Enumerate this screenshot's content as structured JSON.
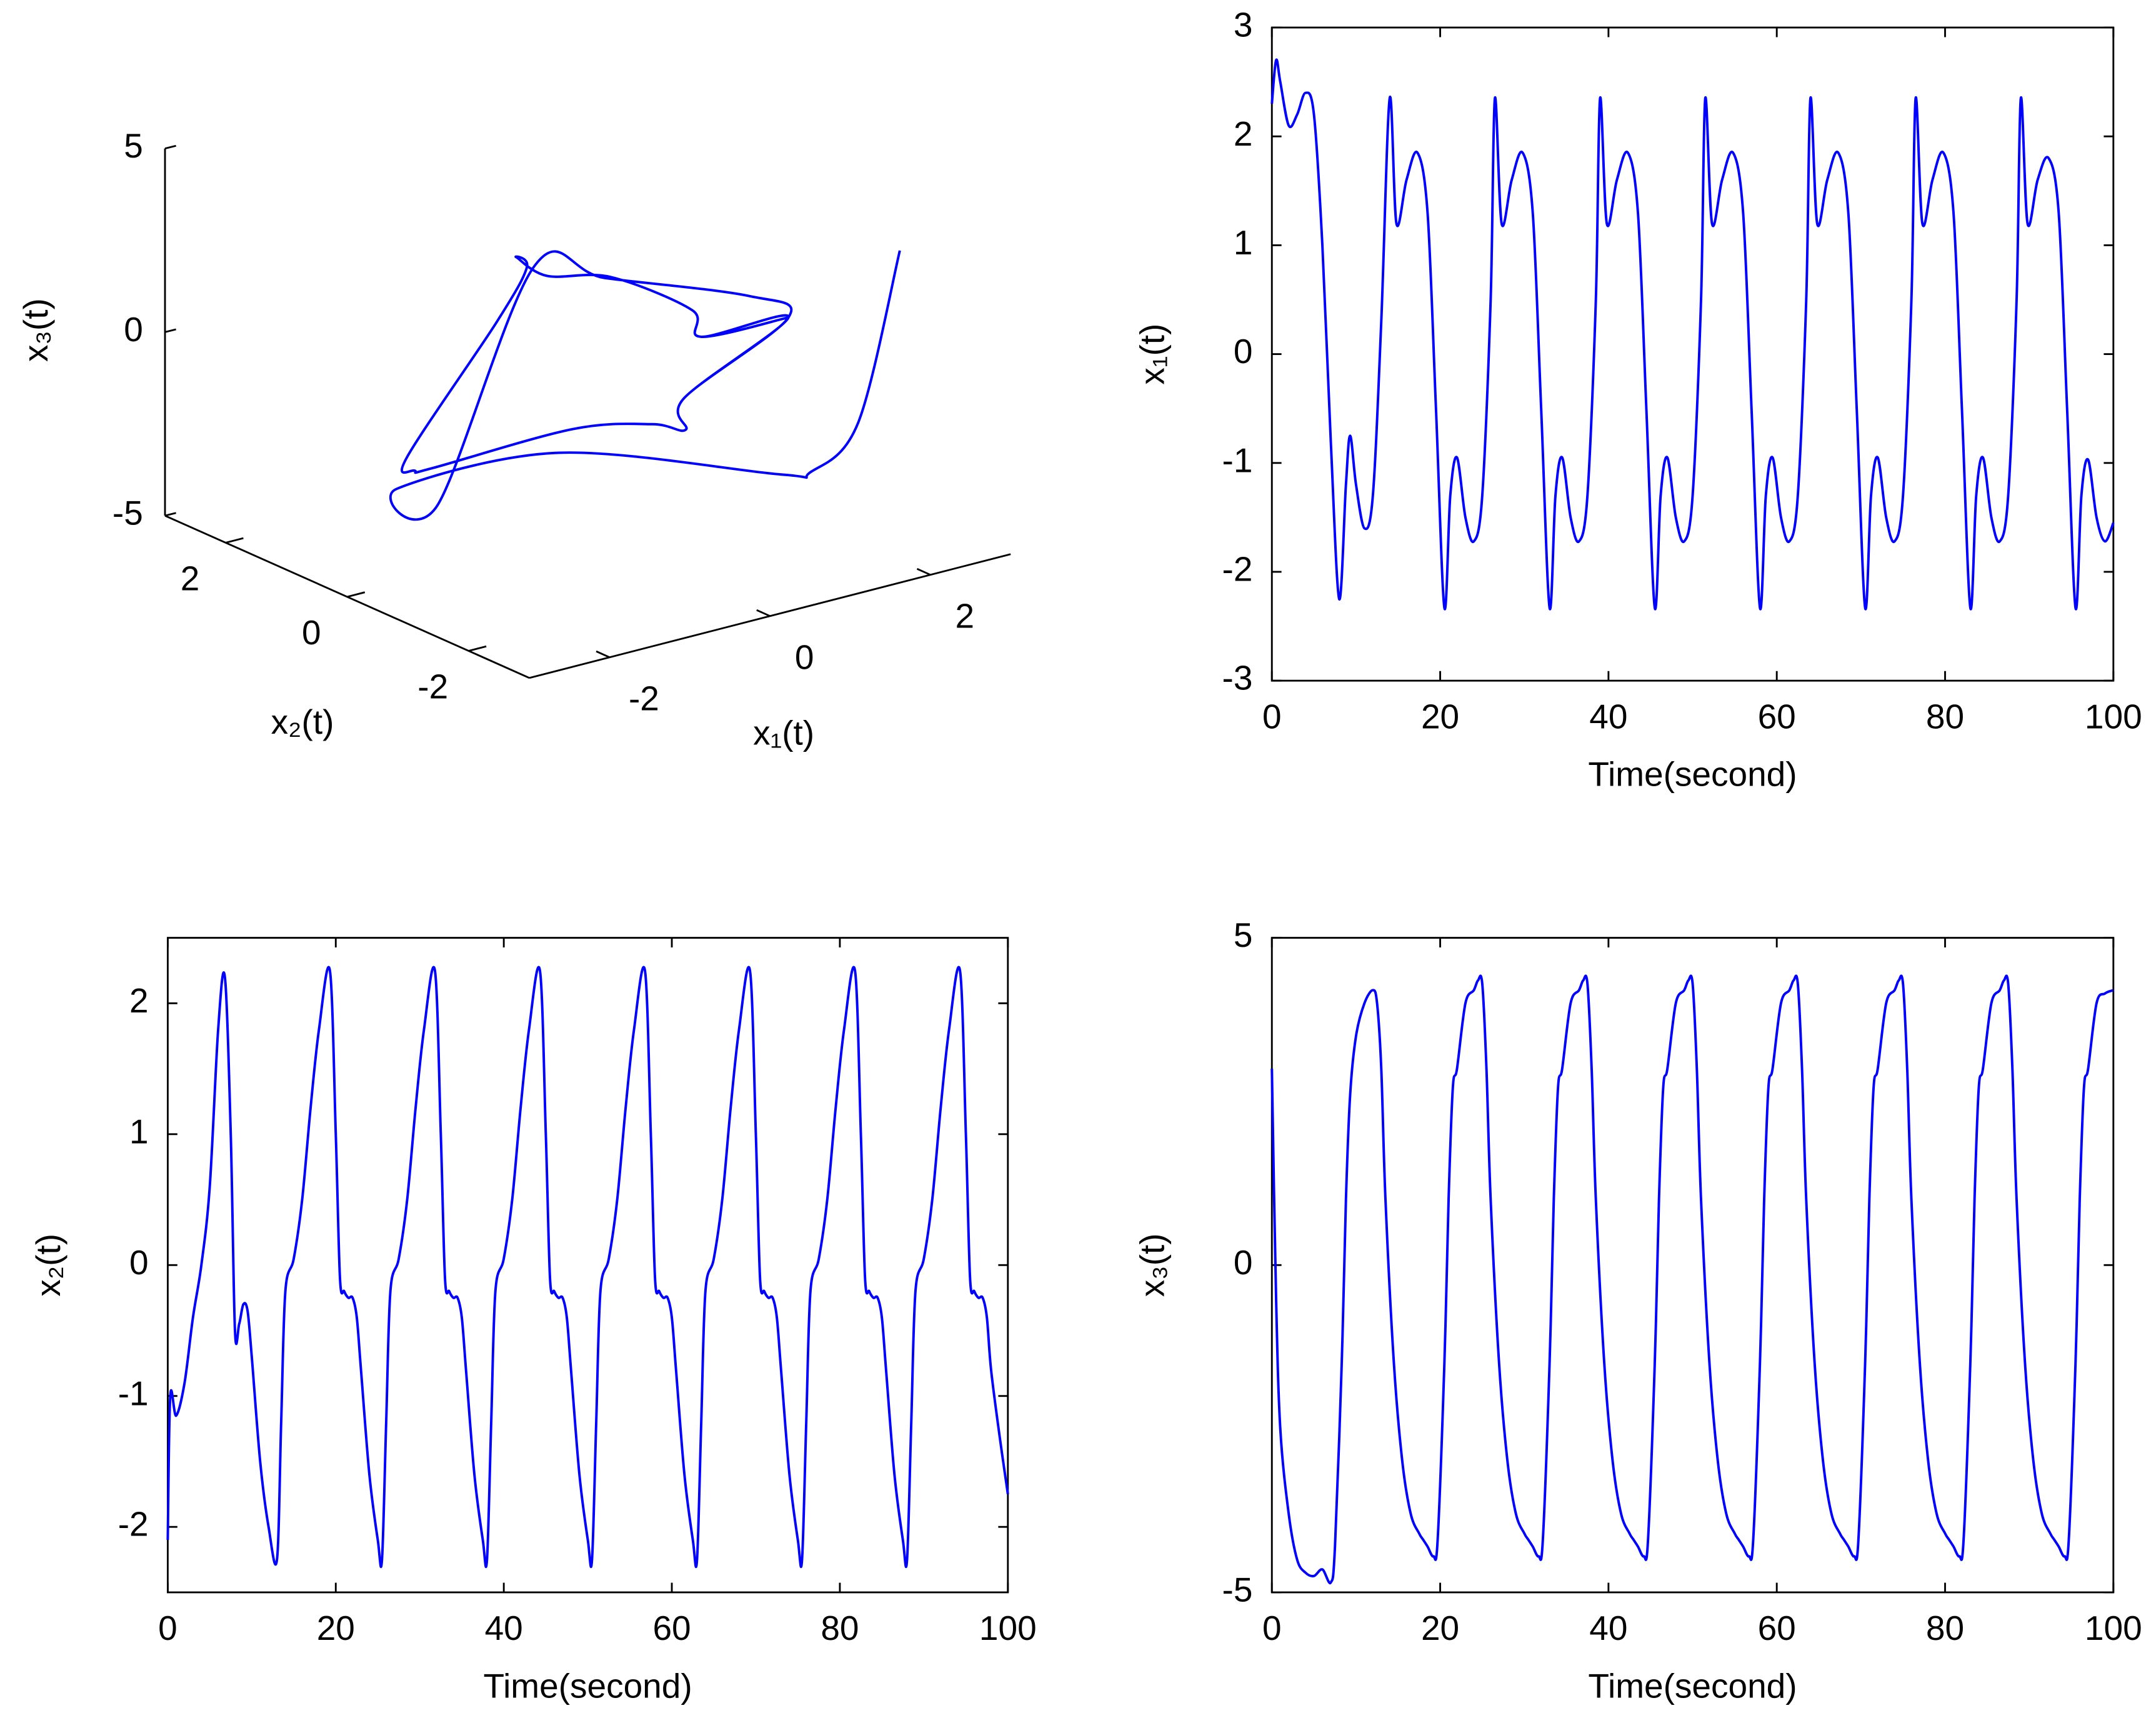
{
  "chart_data": [
    {
      "type": "line3d",
      "xlabel": "x₁(t)",
      "ylabel": "x₂(t)",
      "zlabel": "x₃(t)",
      "color": "#0000ff",
      "xlim": [
        -3,
        3
      ],
      "xticks": [
        -2,
        0,
        2
      ],
      "ylim": [
        -3,
        3
      ],
      "yticks": [
        -2,
        0,
        2
      ],
      "zlim": [
        -5,
        5
      ],
      "zticks": [
        -5,
        0,
        5
      ],
      "x": [
        2.3,
        2.5,
        2.1,
        2.4,
        1.0,
        -0.8,
        -2.25,
        -1.2,
        -1.3,
        0.3,
        2.35,
        1.2,
        1.6,
        1.85,
        1.3,
        -0.5,
        -1.4,
        -2.33,
        -1.3,
        -0.95,
        -1.5,
        -1.72,
        -1.3,
        -0.4,
        0.5,
        2.35,
        1.2,
        1.6,
        1.85,
        1.3,
        -0.5,
        -1.4,
        -2.33,
        -1.3,
        -0.95,
        -1.5,
        -1.72,
        -1.3,
        -0.4,
        0.5,
        2.35
      ],
      "y": [
        -2.1,
        -1.15,
        -0.9,
        0,
        1.8,
        2.1,
        -0.5,
        -0.7,
        -2.0,
        -2.25,
        -0.2,
        0.0,
        0.5,
        1.38,
        1.97,
        1.9,
        1.0,
        -0.1,
        -0.22,
        -0.25,
        -0.8,
        -1.6,
        -2.1,
        -2.25,
        -1.2,
        -0.2,
        0.0,
        0.5,
        1.38,
        1.97,
        1.9,
        1.0,
        -0.1,
        -0.22,
        -0.25,
        -0.8,
        -1.6,
        -2.1,
        -2.25,
        -1.2,
        -0.2
      ],
      "z": [
        3,
        -2.5,
        -3.8,
        -4.7,
        -4.65,
        -4.85,
        -2.55,
        3.5,
        4.2,
        3.0,
        -0.25,
        -1.95,
        -3.4,
        -4.04,
        -4.3,
        -4.3,
        -3.2,
        -1.5,
        1.7,
        3.0,
        4.0,
        4.2,
        4.3,
        3.0,
        1.0,
        -0.25,
        -1.95,
        -3.4,
        -4.04,
        -4.3,
        -4.3,
        -3.2,
        -1.5,
        1.7,
        3.0,
        4.0,
        4.2,
        4.3,
        3.0,
        1.0,
        -0.25
      ]
    },
    {
      "type": "line",
      "xlabel": "Time(second)",
      "ylabel": "x₁(t)",
      "color": "#0000ff",
      "xlim": [
        0,
        100
      ],
      "xticks": [
        0,
        20,
        40,
        60,
        80,
        100
      ],
      "ylim": [
        -3,
        3
      ],
      "yticks": [
        -3,
        -2,
        -1,
        0,
        1,
        2,
        3
      ],
      "x": [
        0,
        0.5,
        1,
        2,
        3,
        4,
        5,
        6,
        7,
        8,
        8.8,
        9.3,
        10,
        11,
        12,
        13,
        14,
        14.8,
        16,
        17.3,
        18.5,
        19.5,
        20.5,
        21.2,
        22,
        23,
        24,
        25,
        26,
        26.5,
        27.3,
        28.5,
        29.8,
        31,
        32,
        33,
        33.7,
        34.5,
        35.5,
        36.5,
        37.5,
        38.5,
        39,
        39.8,
        41,
        42.3,
        43.5,
        44.5,
        45.5,
        46.2,
        47,
        48,
        49,
        50,
        51,
        51.5,
        52.3,
        53.5,
        54.8,
        56,
        57,
        58,
        58.7,
        59.5,
        60.5,
        61.5,
        62.5,
        63.5,
        64,
        64.8,
        66,
        67.3,
        68.5,
        69.5,
        70.5,
        71.2,
        72,
        73,
        74,
        75,
        76,
        76.5,
        77.3,
        78.5,
        79.8,
        81,
        82,
        83,
        83.7,
        84.5,
        85.5,
        86.5,
        87.5,
        88.5,
        89,
        89.8,
        91,
        92.3,
        93.5,
        94.5,
        95.5,
        96.2,
        97,
        98,
        99,
        100
      ],
      "values": [
        2.3,
        2.7,
        2.5,
        2.1,
        2.2,
        2.4,
        2.2,
        1.0,
        -0.8,
        -2.25,
        -1.2,
        -0.75,
        -1.2,
        -1.6,
        -1.3,
        0.3,
        2.35,
        1.2,
        1.6,
        1.85,
        1.3,
        -0.5,
        -2.33,
        -1.3,
        -0.95,
        -1.5,
        -1.72,
        -1.3,
        0.5,
        2.35,
        1.2,
        1.6,
        1.85,
        1.3,
        -0.5,
        -2.33,
        -1.3,
        -0.95,
        -1.5,
        -1.72,
        -1.3,
        0.5,
        2.35,
        1.2,
        1.6,
        1.85,
        1.3,
        -0.5,
        -2.33,
        -1.3,
        -0.95,
        -1.5,
        -1.72,
        -1.3,
        0.5,
        2.35,
        1.2,
        1.6,
        1.85,
        1.3,
        -0.5,
        -2.33,
        -1.3,
        -0.95,
        -1.5,
        -1.72,
        -1.3,
        0.5,
        2.35,
        1.2,
        1.6,
        1.85,
        1.3,
        -0.5,
        -2.33,
        -1.3,
        -0.95,
        -1.5,
        -1.72,
        -1.3,
        0.5,
        2.35,
        1.2,
        1.6,
        1.85,
        1.3,
        -0.5,
        -2.33,
        -1.3,
        -0.95,
        -1.5,
        -1.72,
        -1.3,
        0.5,
        2.35,
        1.2,
        1.6,
        1.8,
        1.3,
        -0.5,
        -2.33,
        -1.3,
        -0.97,
        -1.5,
        -1.72,
        -1.55
      ]
    },
    {
      "type": "line",
      "xlabel": "Time(second)",
      "ylabel": "x₂(t)",
      "color": "#0000ff",
      "xlim": [
        0,
        100
      ],
      "xticks": [
        0,
        20,
        40,
        60,
        80,
        100
      ],
      "ylim": [
        -2.5,
        2.5
      ],
      "yticks": [
        -2,
        -1,
        0,
        1,
        2
      ],
      "x": [
        0,
        0.3,
        1,
        2,
        3,
        4,
        5,
        6,
        6.8,
        7.5,
        8,
        8.5,
        9,
        9.5,
        10,
        11,
        12,
        13,
        13.5,
        14,
        15,
        16,
        17,
        18,
        19.3,
        20,
        20.5,
        21,
        21.5,
        22,
        22.5,
        23,
        24,
        25,
        25.5,
        26,
        26.5,
        27.5,
        28.5,
        29.5,
        30.5,
        31.8,
        32.5,
        33,
        33.5,
        34,
        34.5,
        35,
        35.5,
        36.5,
        37.5,
        38,
        38.5,
        39,
        40,
        41,
        42,
        43,
        44.3,
        45,
        45.5,
        46,
        46.5,
        47,
        47.5,
        48,
        49,
        50,
        50.5,
        51,
        51.5,
        52.5,
        53.5,
        54.5,
        55.5,
        56.8,
        57.5,
        58,
        58.5,
        59,
        59.5,
        60,
        60.5,
        61.5,
        62.5,
        63,
        63.5,
        64,
        65,
        66,
        67,
        68,
        69.3,
        70,
        70.5,
        71,
        71.5,
        72,
        72.5,
        73,
        74,
        75,
        75.5,
        76,
        76.5,
        77.5,
        78.5,
        79.5,
        80.5,
        81.8,
        82.5,
        83,
        83.5,
        84,
        84.5,
        85,
        85.5,
        86.5,
        87.5,
        88,
        88.5,
        89,
        90,
        91,
        92,
        93,
        94.3,
        95,
        95.5,
        96,
        96.5,
        97,
        97.5,
        98,
        99,
        100
      ],
      "values": [
        -2.1,
        -1.0,
        -1.15,
        -0.9,
        -0.4,
        0,
        0.6,
        1.8,
        2.2,
        1.0,
        -0.5,
        -0.45,
        -0.3,
        -0.35,
        -0.7,
        -1.5,
        -2.0,
        -2.25,
        -1.2,
        -0.2,
        0.05,
        0.5,
        1.2,
        1.8,
        2.25,
        1.0,
        -0.1,
        -0.2,
        -0.25,
        -0.25,
        -0.4,
        -0.8,
        -1.6,
        -2.1,
        -2.25,
        -1.2,
        -0.2,
        0.05,
        0.5,
        1.2,
        1.8,
        2.25,
        1.0,
        -0.1,
        -0.2,
        -0.25,
        -0.25,
        -0.4,
        -0.8,
        -1.6,
        -2.1,
        -2.25,
        -1.2,
        -0.2,
        0.05,
        0.5,
        1.2,
        1.8,
        2.25,
        1.0,
        -0.1,
        -0.2,
        -0.25,
        -0.25,
        -0.4,
        -0.8,
        -1.6,
        -2.1,
        -2.25,
        -1.2,
        -0.2,
        0.05,
        0.5,
        1.2,
        1.8,
        2.25,
        1.0,
        -0.1,
        -0.2,
        -0.25,
        -0.25,
        -0.4,
        -0.8,
        -1.6,
        -2.1,
        -2.25,
        -1.2,
        -0.2,
        0.05,
        0.5,
        1.2,
        1.8,
        2.25,
        1.0,
        -0.1,
        -0.2,
        -0.25,
        -0.25,
        -0.4,
        -0.8,
        -1.6,
        -2.1,
        -2.25,
        -1.2,
        -0.2,
        0.05,
        0.5,
        1.2,
        1.8,
        2.25,
        1.0,
        -0.1,
        -0.2,
        -0.25,
        -0.25,
        -0.4,
        -0.8,
        -1.6,
        -2.1,
        -2.25,
        -1.2,
        -0.2,
        0.05,
        0.5,
        1.2,
        1.8,
        2.25,
        1.0,
        -0.1,
        -0.2,
        -0.25,
        -0.25,
        -0.4,
        -0.8,
        -1.3,
        -1.75
      ]
    },
    {
      "type": "line",
      "xlabel": "Time(second)",
      "ylabel": "x₃(t)",
      "color": "#0000ff",
      "xlim": [
        0,
        100
      ],
      "xticks": [
        0,
        20,
        40,
        60,
        80,
        100
      ],
      "ylim": [
        -5,
        5
      ],
      "yticks": [
        -5,
        0,
        5
      ],
      "x": [
        0,
        0.5,
        1,
        2,
        3,
        4,
        5,
        6,
        7,
        7.5,
        8.3,
        8.8,
        9.3,
        10,
        11,
        12,
        12.5,
        13,
        13.5,
        14.5,
        15.5,
        16.5,
        17.5,
        18,
        18.5,
        19.2,
        19.7,
        20.5,
        21,
        21.5,
        22,
        23,
        24,
        24.5,
        25,
        25.5,
        26,
        27,
        28,
        29,
        30,
        30.5,
        31,
        31.7,
        32.2,
        33,
        33.5,
        34,
        34.5,
        35.5,
        36.5,
        37,
        37.5,
        38,
        38.5,
        39.5,
        40.5,
        41.5,
        42.5,
        43,
        43.5,
        44.2,
        44.7,
        45.5,
        46,
        46.5,
        47,
        48,
        49,
        49.5,
        50,
        50.5,
        51,
        52,
        53,
        54,
        55,
        55.5,
        56,
        56.7,
        57.2,
        58,
        58.5,
        59,
        59.5,
        60.5,
        61.5,
        62,
        62.5,
        63,
        63.5,
        64.5,
        65.5,
        66.5,
        67.5,
        68,
        68.5,
        69.2,
        69.7,
        70.5,
        71,
        71.5,
        72,
        73,
        74,
        74.5,
        75,
        75.5,
        76,
        77,
        78,
        79,
        80,
        80.5,
        81,
        81.7,
        82.2,
        83,
        83.5,
        84,
        84.5,
        85.5,
        86.5,
        87,
        87.5,
        88,
        88.5,
        89.5,
        90.5,
        91.5,
        92.5,
        93,
        93.5,
        94.2,
        94.7,
        95.5,
        96,
        96.5,
        97,
        98,
        99,
        100
      ],
      "values": [
        3,
        -0.5,
        -2.5,
        -3.8,
        -4.5,
        -4.7,
        -4.75,
        -4.65,
        -4.85,
        -4.3,
        -1.5,
        1.0,
        2.6,
        3.5,
        4.0,
        4.2,
        4.0,
        3.0,
        1.0,
        -1.5,
        -3.0,
        -3.8,
        -4.1,
        -4.2,
        -4.3,
        -4.45,
        -4.2,
        -1.5,
        1.0,
        2.7,
        3.0,
        4.0,
        4.2,
        4.35,
        4.3,
        3.0,
        1.0,
        -1.5,
        -3.0,
        -3.8,
        -4.1,
        -4.2,
        -4.3,
        -4.45,
        -4.2,
        -1.5,
        1.0,
        2.7,
        3.0,
        4.0,
        4.2,
        4.35,
        4.3,
        3.0,
        1.0,
        -1.5,
        -3.0,
        -3.8,
        -4.1,
        -4.2,
        -4.3,
        -4.45,
        -4.2,
        -1.5,
        1.0,
        2.7,
        3.0,
        4.0,
        4.2,
        4.35,
        4.3,
        3.0,
        1.0,
        -1.5,
        -3.0,
        -3.8,
        -4.1,
        -4.2,
        -4.3,
        -4.45,
        -4.2,
        -1.5,
        1.0,
        2.7,
        3.0,
        4.0,
        4.2,
        4.35,
        4.3,
        3.0,
        1.0,
        -1.5,
        -3.0,
        -3.8,
        -4.1,
        -4.2,
        -4.3,
        -4.45,
        -4.2,
        -1.5,
        1.0,
        2.7,
        3.0,
        4.0,
        4.2,
        4.35,
        4.3,
        3.0,
        1.0,
        -1.5,
        -3.0,
        -3.8,
        -4.1,
        -4.2,
        -4.3,
        -4.45,
        -4.2,
        -1.5,
        1.0,
        2.7,
        3.0,
        4.0,
        4.2,
        4.35,
        4.3,
        3.0,
        1.0,
        -1.5,
        -3.0,
        -3.8,
        -4.1,
        -4.2,
        -4.3,
        -4.45,
        -4.2,
        -1.5,
        1.0,
        2.7,
        3.0,
        4.0,
        4.15,
        4.2
      ]
    }
  ]
}
